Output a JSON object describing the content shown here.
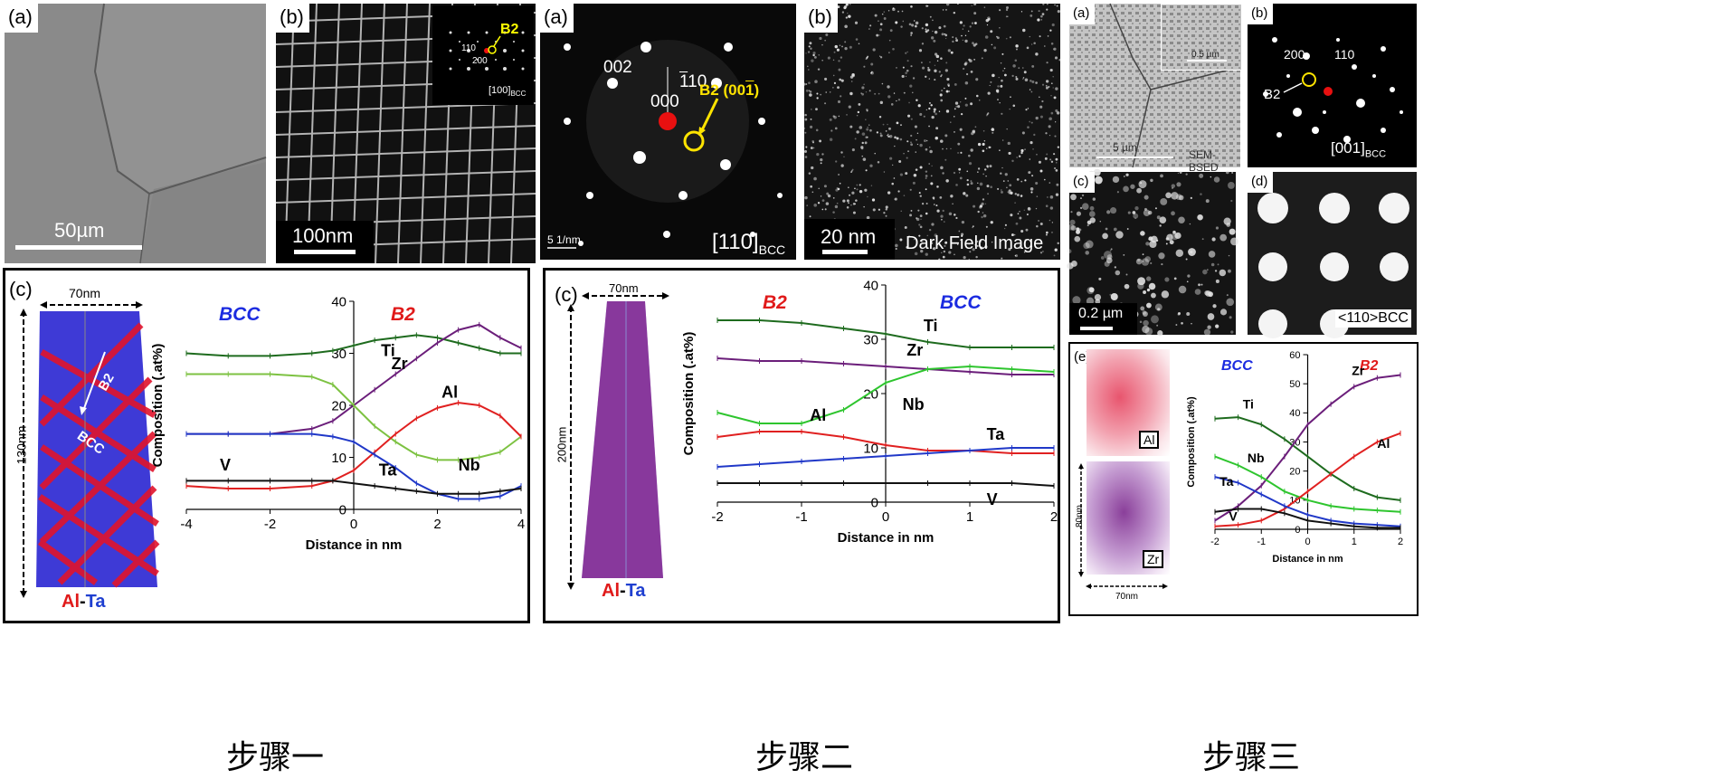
{
  "step1": {
    "label": "步骤一",
    "panel_a": {
      "label": "(a)",
      "scalebar": "50µm"
    },
    "panel_b": {
      "label": "(b)",
      "scalebar": "100nm",
      "inset_spot": "B2",
      "inset_idx1": "110",
      "inset_idx2": "200",
      "inset_zone": "[100]",
      "inset_zone_sub": "BCC"
    },
    "panel_c": {
      "label": "(c)",
      "width_dim": "70nm",
      "height_dim": "130nm",
      "b2": "B2",
      "bcc": "BCC",
      "elem_al": "Al",
      "elem_dash": "-",
      "elem_ta": "Ta",
      "phase_left": "BCC",
      "phase_right": "B2"
    }
  },
  "step2": {
    "label": "步骤二",
    "panel_a": {
      "label": "(a)",
      "idx_002": "002",
      "idx_110": "110",
      "idx_000": "000",
      "spot_label": "B2 (001)",
      "zone": "[110]",
      "zone_sub": "BCC",
      "scale": "5 1/nm"
    },
    "panel_b": {
      "label": "(b)",
      "scalebar": "20 nm",
      "caption": "Dark Field Image"
    },
    "panel_c": {
      "label": "(c)",
      "width_dim": "70nm",
      "height_dim": "200nm",
      "elem_al": "Al",
      "elem_dash": "-",
      "elem_ta": "Ta",
      "phase_left": "B2",
      "phase_right": "BCC"
    }
  },
  "step3": {
    "label": "步骤三",
    "panel_a": {
      "label": "(a)",
      "inset_scale": "0.5 µm",
      "scale": "5 µm",
      "caption": "SEM-BSED"
    },
    "panel_b": {
      "label": "(b)",
      "idx_200": "200",
      "idx_110": "110",
      "spot": "B2",
      "zone": "[001]",
      "zone_sub": "BCC"
    },
    "panel_c": {
      "label": "(c)",
      "scalebar": "0.2 µm"
    },
    "panel_d": {
      "label": "(d)",
      "caption": "<110>BCC"
    },
    "panel_e": {
      "label": "(e)",
      "map_al": "Al",
      "map_zr": "Zr",
      "height_dim": "80nm",
      "width_dim": "70nm",
      "phase_left": "BCC",
      "phase_right": "B2"
    }
  },
  "chart_data": [
    {
      "type": "line",
      "xlabel": "Distance in nm",
      "ylabel": "Composition (.at%)",
      "xlim": [
        -4,
        4
      ],
      "ylim": [
        0,
        40
      ],
      "xticks": [
        -4,
        -2,
        0,
        2,
        4
      ],
      "yticks": [
        0,
        10,
        20,
        30,
        40
      ],
      "x": [
        -4,
        -3,
        -2,
        -1,
        -0.5,
        0,
        0.5,
        1,
        1.5,
        2,
        2.5,
        3,
        3.5,
        4
      ],
      "series": [
        {
          "name": "Ti",
          "color": "#1e6b1e",
          "values": [
            30,
            29.5,
            29.5,
            30,
            30.5,
            31.5,
            32.5,
            33,
            33.5,
            33,
            32,
            31,
            30,
            30
          ]
        },
        {
          "name": "Zr",
          "color": "#6b1e7a",
          "values": [
            14.5,
            14.5,
            14.5,
            15.5,
            17,
            20,
            23,
            26,
            29,
            32,
            34.5,
            35.5,
            33,
            31
          ]
        },
        {
          "name": "Nb",
          "color": "#7dc242",
          "values": [
            26,
            26,
            26,
            25.5,
            24,
            20,
            16,
            13,
            10.5,
            9.5,
            9.5,
            10,
            11,
            14
          ]
        },
        {
          "name": "Al",
          "color": "#e02020",
          "values": [
            4.5,
            4,
            4,
            4.5,
            5.5,
            7.5,
            11,
            14.5,
            17.5,
            19.5,
            20.5,
            20,
            18,
            14
          ]
        },
        {
          "name": "Ta",
          "color": "#2038c8",
          "values": [
            14.5,
            14.5,
            14.5,
            14.5,
            14,
            13,
            10.5,
            8,
            5,
            3,
            2,
            2,
            2.5,
            4.5
          ]
        },
        {
          "name": "V",
          "color": "#111111",
          "values": [
            5.5,
            5.5,
            5.5,
            5.5,
            5.5,
            5,
            4.5,
            4,
            3.5,
            3,
            3,
            3,
            3.5,
            4
          ]
        }
      ]
    },
    {
      "type": "line",
      "xlabel": "Distance in nm",
      "ylabel": "Composition (.at%)",
      "xlim": [
        -2,
        2
      ],
      "ylim": [
        0,
        40
      ],
      "xticks": [
        -2,
        -1,
        0,
        1,
        2
      ],
      "yticks": [
        0,
        10,
        20,
        30,
        40
      ],
      "x": [
        -2,
        -1.5,
        -1,
        -0.5,
        0,
        0.5,
        1,
        1.5,
        2
      ],
      "series": [
        {
          "name": "Ti",
          "color": "#1e6b1e",
          "values": [
            33.5,
            33.5,
            33,
            32,
            31,
            29.5,
            28.5,
            28.5,
            28.5
          ]
        },
        {
          "name": "Zr",
          "color": "#6b1e7a",
          "values": [
            26.5,
            26,
            26,
            25.5,
            25,
            24.5,
            24,
            23.5,
            23.5
          ]
        },
        {
          "name": "Nb",
          "color": "#2ec52e",
          "values": [
            16.5,
            14.5,
            14.5,
            17,
            22,
            24.5,
            25,
            24.5,
            24
          ]
        },
        {
          "name": "Al",
          "color": "#e02020",
          "values": [
            12,
            13,
            13,
            12,
            10.5,
            9.5,
            9.5,
            9,
            9
          ]
        },
        {
          "name": "Ta",
          "color": "#2038c8",
          "values": [
            6.5,
            7,
            7.5,
            8,
            8.5,
            9,
            9.5,
            10,
            10
          ]
        },
        {
          "name": "V",
          "color": "#111111",
          "values": [
            3.5,
            3.5,
            3.5,
            3.5,
            3.5,
            3.5,
            3.5,
            3.5,
            3
          ]
        }
      ]
    },
    {
      "type": "line",
      "xlabel": "Distance in nm",
      "ylabel": "Composition (.at%)",
      "xlim": [
        -2,
        2
      ],
      "ylim": [
        0,
        60
      ],
      "xticks": [
        -2,
        -1,
        0,
        1,
        2
      ],
      "yticks": [
        0,
        10,
        20,
        30,
        40,
        50,
        60
      ],
      "x": [
        -2,
        -1.5,
        -1,
        -0.5,
        0,
        0.5,
        1,
        1.5,
        2
      ],
      "series": [
        {
          "name": "Ti",
          "color": "#1e6b1e",
          "values": [
            38,
            38.5,
            36,
            31,
            25,
            19,
            14,
            11,
            10
          ]
        },
        {
          "name": "Zr",
          "color": "#6b1e7a",
          "values": [
            3,
            8,
            15,
            25,
            36,
            43,
            49,
            52,
            53
          ]
        },
        {
          "name": "Nb",
          "color": "#2ec52e",
          "values": [
            25,
            22,
            18,
            13,
            10,
            8,
            7,
            6.5,
            6
          ]
        },
        {
          "name": "Al",
          "color": "#e02020",
          "values": [
            1,
            1.5,
            3,
            7,
            13,
            19,
            25,
            30,
            33
          ]
        },
        {
          "name": "Ta",
          "color": "#2038c8",
          "values": [
            18,
            16,
            12,
            8,
            5,
            3,
            2,
            1.5,
            1
          ]
        },
        {
          "name": "V",
          "color": "#111111",
          "values": [
            6,
            7,
            7,
            5.5,
            3,
            2,
            1,
            0.5,
            0.5
          ]
        }
      ]
    }
  ]
}
